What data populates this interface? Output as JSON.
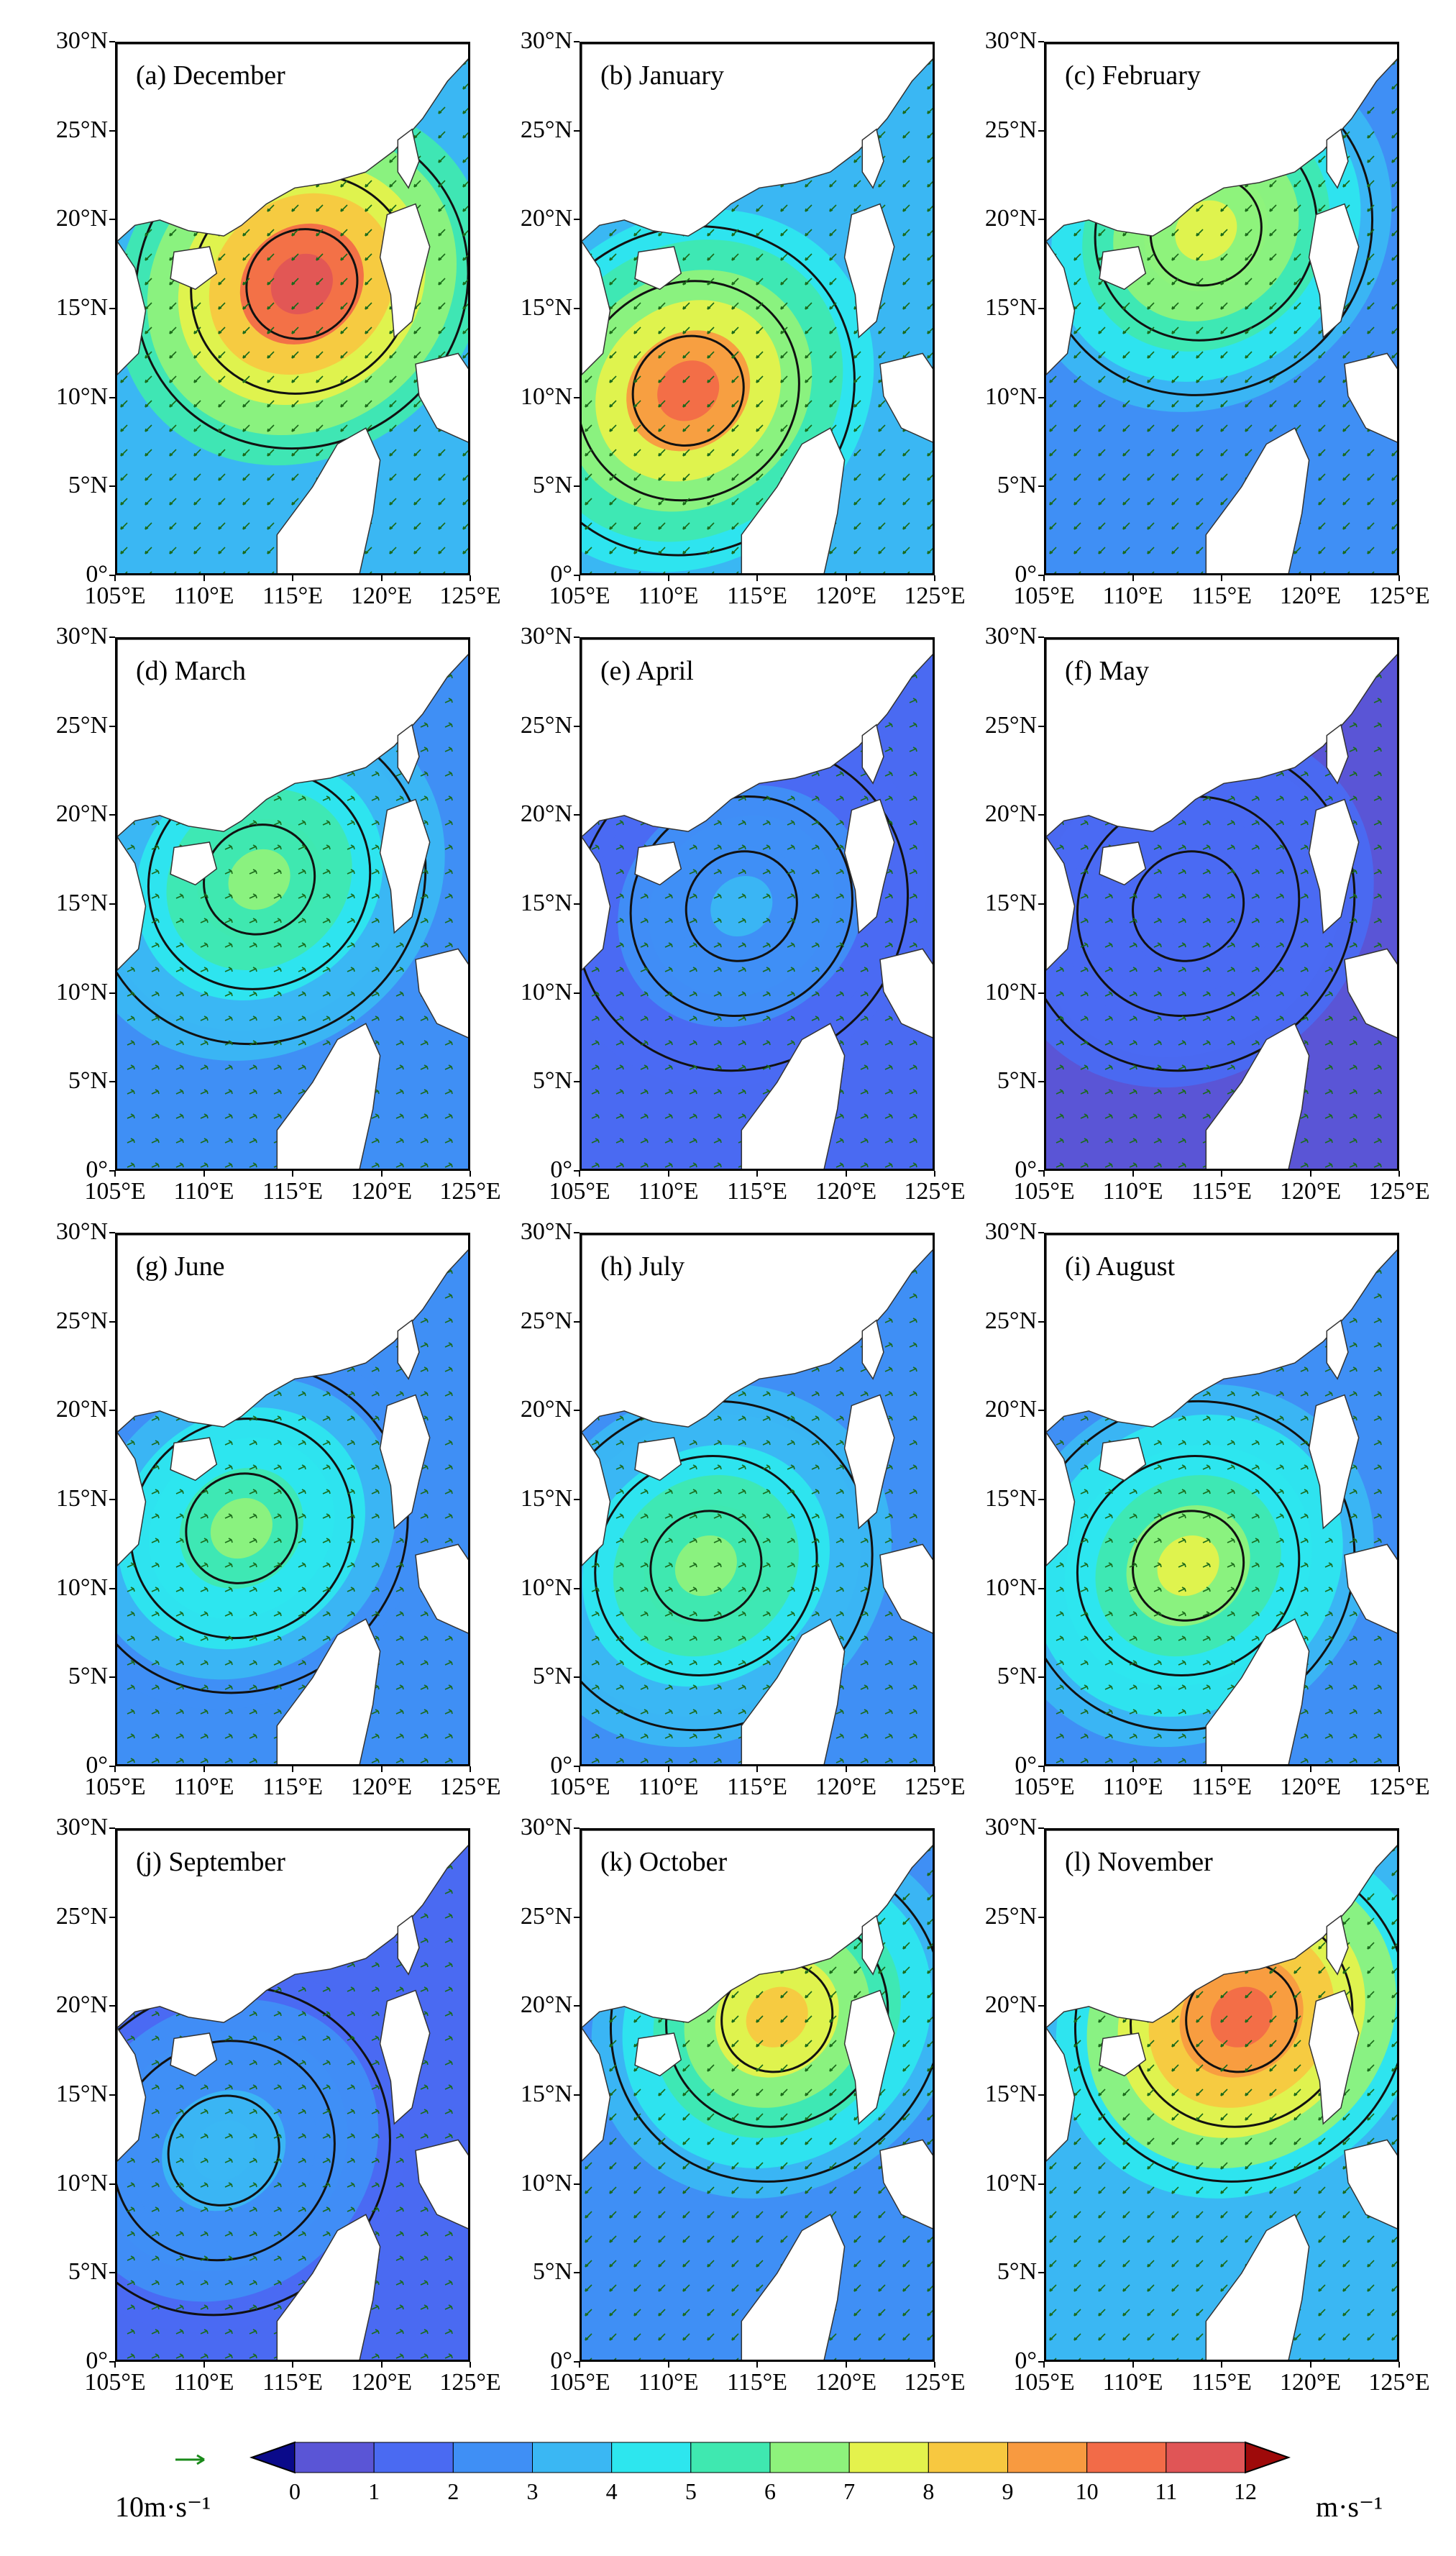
{
  "panels": [
    {
      "title": "(a) December",
      "intensity": 0.95,
      "core": [
        0.52,
        0.45
      ]
    },
    {
      "title": "(b) January",
      "intensity": 0.85,
      "core": [
        0.3,
        0.65
      ]
    },
    {
      "title": "(c) February",
      "intensity": 0.65,
      "core": [
        0.45,
        0.35
      ]
    },
    {
      "title": "(d) March",
      "intensity": 0.55,
      "core": [
        0.4,
        0.45
      ]
    },
    {
      "title": "(e) April",
      "intensity": 0.25,
      "core": [
        0.45,
        0.5
      ]
    },
    {
      "title": "(f) May",
      "intensity": 0.15,
      "core": [
        0.4,
        0.5
      ]
    },
    {
      "title": "(g) June",
      "intensity": 0.5,
      "core": [
        0.35,
        0.55
      ]
    },
    {
      "title": "(h) July",
      "intensity": 0.55,
      "core": [
        0.35,
        0.62
      ]
    },
    {
      "title": "(i) August",
      "intensity": 0.6,
      "core": [
        0.4,
        0.62
      ]
    },
    {
      "title": "(j) September",
      "intensity": 0.3,
      "core": [
        0.3,
        0.6
      ]
    },
    {
      "title": "(k) October",
      "intensity": 0.7,
      "core": [
        0.55,
        0.35
      ]
    },
    {
      "title": "(l) November",
      "intensity": 0.9,
      "core": [
        0.55,
        0.35
      ]
    }
  ],
  "axes": {
    "y_ticks": [
      "30°N",
      "25°N",
      "20°N",
      "15°N",
      "10°N",
      "5°N",
      "0°"
    ],
    "x_ticks": [
      "105°E",
      "110°E",
      "115°E",
      "120°E",
      "125°E"
    ]
  },
  "colorbar": {
    "labels": [
      "0",
      "1",
      "2",
      "3",
      "4",
      "5",
      "6",
      "7",
      "8",
      "9",
      "10",
      "11",
      "12"
    ],
    "colors": [
      "#5a55d6",
      "#4a6af2",
      "#3f8ff5",
      "#3ab7f3",
      "#2de6ee",
      "#3fe8b0",
      "#8ef27c",
      "#e4f24c",
      "#f7c840",
      "#f89a40",
      "#f26b48",
      "#e05556"
    ],
    "under_color": "#0a0a8a",
    "over_color": "#9e0a0a",
    "units": "m·s⁻¹",
    "reference_vector_label": "10m·s⁻¹",
    "reference_vector_color": "#1a8a1a"
  }
}
